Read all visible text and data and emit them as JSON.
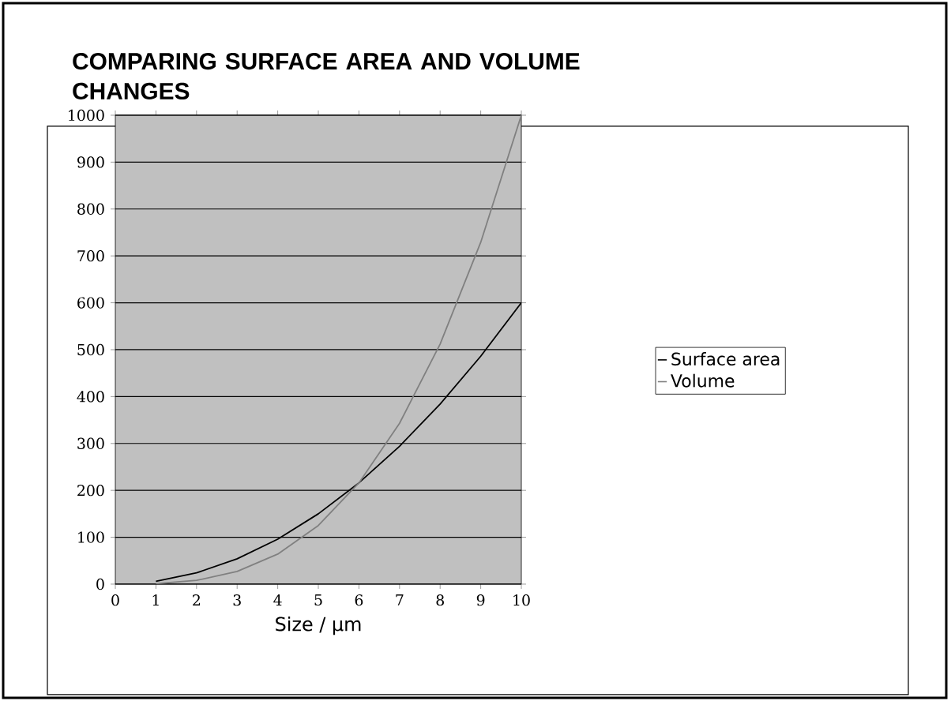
{
  "chart_data": {
    "type": "line",
    "title": "COMPARING SURFACE AREA AND VOLUME CHANGES",
    "xlabel": "Size / µm",
    "x": [
      1,
      2,
      3,
      4,
      5,
      6,
      7,
      8,
      9,
      10
    ],
    "series": [
      {
        "name": "Surface area",
        "color": "#000000",
        "values": [
          6,
          24,
          54,
          96,
          150,
          216,
          294,
          384,
          486,
          600
        ]
      },
      {
        "name": "Volume",
        "color": "#808080",
        "values": [
          1,
          8,
          27,
          64,
          125,
          216,
          343,
          512,
          729,
          1000
        ]
      }
    ],
    "xlim": [
      0,
      10
    ],
    "xticks": [
      0,
      1,
      2,
      3,
      4,
      5,
      6,
      7,
      8,
      9,
      10
    ],
    "ylim": [
      0,
      1000
    ],
    "yticks": [
      0,
      100,
      200,
      300,
      400,
      500,
      600,
      700,
      800,
      900,
      1000
    ],
    "grid": "y",
    "legend": "right",
    "marker": "none",
    "line_style": "solid"
  }
}
